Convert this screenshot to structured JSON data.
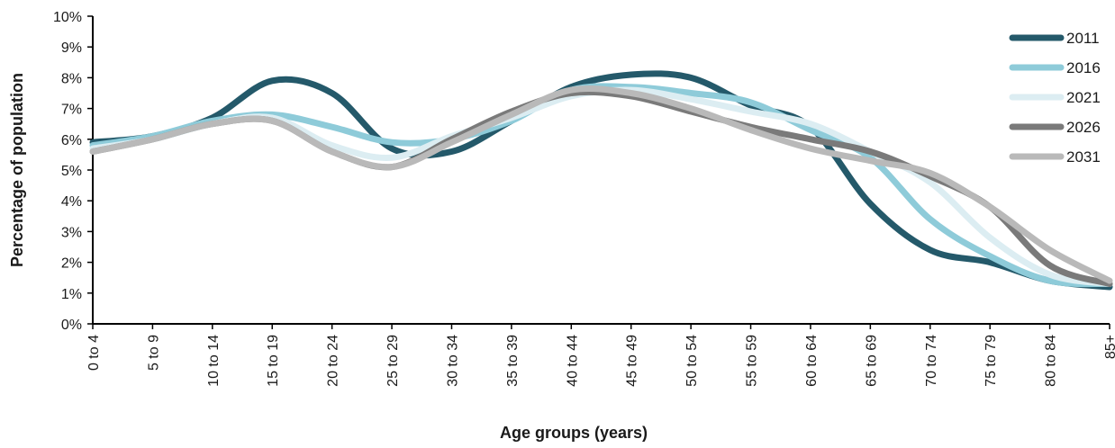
{
  "chart_data": {
    "type": "line",
    "title": "",
    "xlabel": "Age groups (years)",
    "ylabel": "Percentage of population",
    "categories": [
      "0 to 4",
      "5 to 9",
      "10 to 14",
      "15 to 19",
      "20 to 24",
      "25 to 29",
      "30 to 34",
      "35 to 39",
      "40 to 44",
      "45 to 49",
      "50 to 54",
      "55 to 59",
      "60 to 64",
      "65 to 69",
      "70 to 74",
      "75 to 79",
      "80 to 84",
      "85+"
    ],
    "y_ticks": [
      "0%",
      "1%",
      "2%",
      "3%",
      "4%",
      "5%",
      "6%",
      "7%",
      "8%",
      "9%",
      "10%"
    ],
    "ylim": [
      0,
      10
    ],
    "grid": false,
    "legend_position": "right",
    "series": [
      {
        "name": "2011",
        "color": "#24596a",
        "values": [
          5.9,
          6.1,
          6.7,
          7.9,
          7.5,
          5.7,
          5.6,
          6.6,
          7.7,
          8.1,
          8.0,
          7.1,
          6.4,
          3.9,
          2.4,
          2.0,
          1.4,
          1.2
        ]
      },
      {
        "name": "2016",
        "color": "#8ecbd9",
        "values": [
          5.8,
          6.1,
          6.6,
          6.8,
          6.4,
          5.9,
          6.0,
          6.6,
          7.6,
          7.7,
          7.5,
          7.2,
          6.3,
          5.4,
          3.4,
          2.2,
          1.4,
          1.3
        ]
      },
      {
        "name": "2021",
        "color": "#dcedf2",
        "values": [
          5.7,
          6.0,
          6.5,
          6.7,
          5.8,
          5.4,
          6.1,
          6.7,
          7.4,
          7.6,
          7.3,
          6.9,
          6.5,
          5.6,
          4.6,
          2.8,
          1.6,
          1.3
        ]
      },
      {
        "name": "2026",
        "color": "#7a7a7a",
        "values": [
          5.6,
          6.0,
          6.5,
          6.6,
          5.6,
          5.1,
          6.0,
          6.9,
          7.5,
          7.4,
          6.9,
          6.4,
          6.0,
          5.6,
          4.8,
          3.8,
          1.9,
          1.3
        ]
      },
      {
        "name": "2031",
        "color": "#b9b9b9",
        "values": [
          5.6,
          6.0,
          6.5,
          6.6,
          5.6,
          5.1,
          5.9,
          6.8,
          7.6,
          7.5,
          7.0,
          6.3,
          5.7,
          5.3,
          4.9,
          3.8,
          2.4,
          1.4
        ]
      }
    ]
  }
}
